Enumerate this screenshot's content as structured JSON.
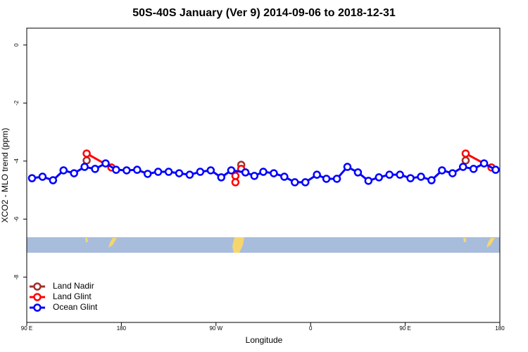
{
  "chart_data": {
    "type": "line",
    "title": "50S-40S January (Ver 9)   2014-09-06 to 2018-12-31",
    "xlabel": "Longitude",
    "ylabel": "XCO2 - MLO trend (ppm)",
    "xlim": [
      90,
      540
    ],
    "ylim": [
      -9.56,
      0.58
    ],
    "xticks": [
      {
        "value": 90,
        "label": "90 E"
      },
      {
        "value": 180,
        "label": "180"
      },
      {
        "value": 270,
        "label": "90 W"
      },
      {
        "value": 360,
        "label": "0"
      },
      {
        "value": 450,
        "label": "90 E"
      },
      {
        "value": 540,
        "label": "180"
      }
    ],
    "yticks": [
      0,
      -2,
      -4,
      -6,
      -8
    ],
    "legend": "bottom-left",
    "series": [
      {
        "name": "Land Nadir",
        "color": "#a0302c",
        "x": [
          147,
          null,
          294,
          null,
          507.5
        ],
        "values": [
          -3.98,
          null,
          -4.13,
          null,
          -3.98
        ]
      },
      {
        "name": "Land Glint",
        "color": "#ff0000",
        "x": [
          147,
          170.5,
          null,
          288.5,
          null,
          288.5,
          null,
          294,
          null,
          507.5,
          532
        ],
        "values": [
          -3.74,
          -4.22,
          null,
          -4.51,
          null,
          -4.73,
          null,
          -4.27,
          null,
          -3.74,
          -4.22
        ]
      },
      {
        "name": "Ocean Glint",
        "color": "#0000ff",
        "x": [
          95,
          105,
          115,
          125,
          135,
          145,
          155,
          165,
          175,
          185,
          195,
          205,
          215,
          225,
          235,
          245,
          255,
          265,
          275,
          284.5,
          298,
          306.5,
          315,
          325,
          335,
          345,
          355,
          366,
          375,
          385,
          395,
          405,
          415,
          425,
          435,
          445,
          455,
          465,
          475,
          485,
          495,
          505,
          515,
          525,
          536
        ],
        "values": [
          -4.59,
          -4.54,
          -4.66,
          -4.32,
          -4.42,
          -4.2,
          -4.27,
          -4.08,
          -4.3,
          -4.32,
          -4.3,
          -4.44,
          -4.37,
          -4.37,
          -4.42,
          -4.47,
          -4.37,
          -4.32,
          -4.56,
          -4.32,
          -4.39,
          -4.51,
          -4.37,
          -4.42,
          -4.54,
          -4.73,
          -4.73,
          -4.47,
          -4.61,
          -4.61,
          -4.2,
          -4.39,
          -4.68,
          -4.56,
          -4.47,
          -4.47,
          -4.59,
          -4.54,
          -4.66,
          -4.32,
          -4.42,
          -4.2,
          -4.27,
          -4.08,
          -4.3
        ]
      }
    ]
  }
}
